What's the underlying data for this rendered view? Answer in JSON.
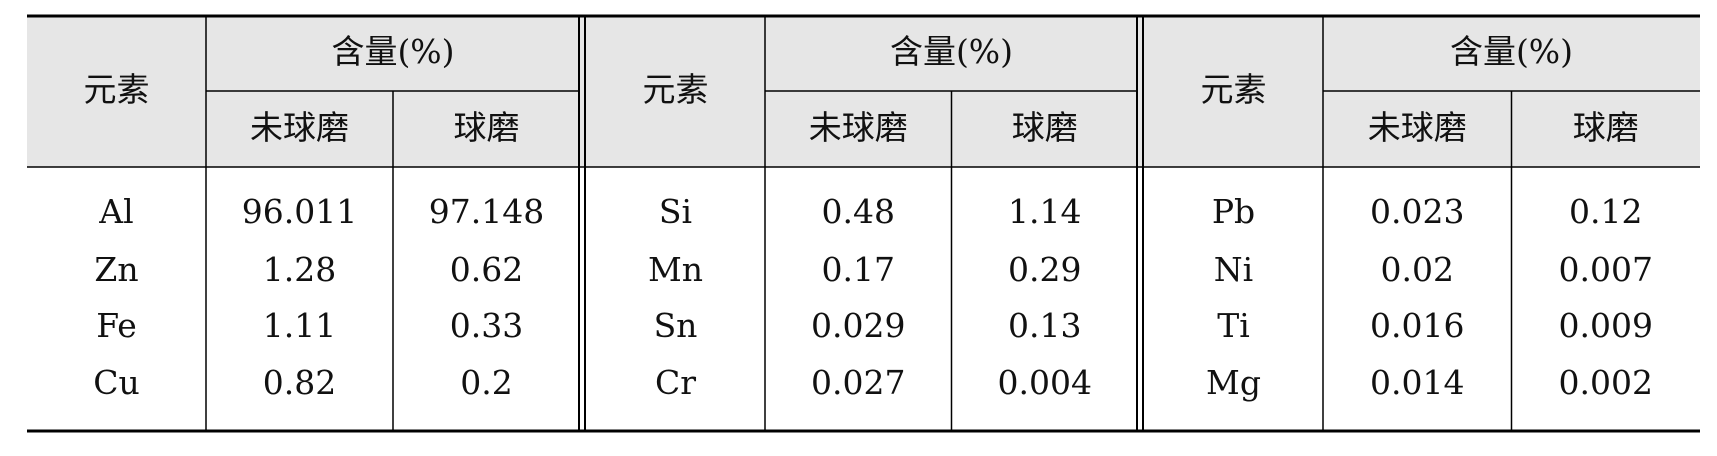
{
  "table": {
    "groups": [
      {
        "element_header": "元素",
        "content_header": "含量(%)",
        "subheaders": [
          "未球磨",
          "球磨"
        ],
        "rows": [
          [
            "Al",
            "96.011",
            "97.148"
          ],
          [
            "Zn",
            "1.28",
            "0.62"
          ],
          [
            "Fe",
            "1.11",
            "0.33"
          ],
          [
            "Cu",
            "0.82",
            "0.2"
          ]
        ]
      },
      {
        "element_header": "元素",
        "content_header": "含量(%)",
        "subheaders": [
          "未球磨",
          "球磨"
        ],
        "rows": [
          [
            "Si",
            "0.48",
            "1.14"
          ],
          [
            "Mn",
            "0.17",
            "0.29"
          ],
          [
            "Sn",
            "0.029",
            "0.13"
          ],
          [
            "Cr",
            "0.027",
            "0.004"
          ]
        ]
      },
      {
        "element_header": "元素",
        "content_header": "含量(%)",
        "subheaders": [
          "未球磨",
          "球磨"
        ],
        "rows": [
          [
            "Pb",
            "0.023",
            "0.12"
          ],
          [
            "Ni",
            "0.02",
            "0.007"
          ],
          [
            "Ti",
            "0.016",
            "0.009"
          ],
          [
            "Mg",
            "0.014",
            "0.002"
          ]
        ]
      }
    ]
  }
}
